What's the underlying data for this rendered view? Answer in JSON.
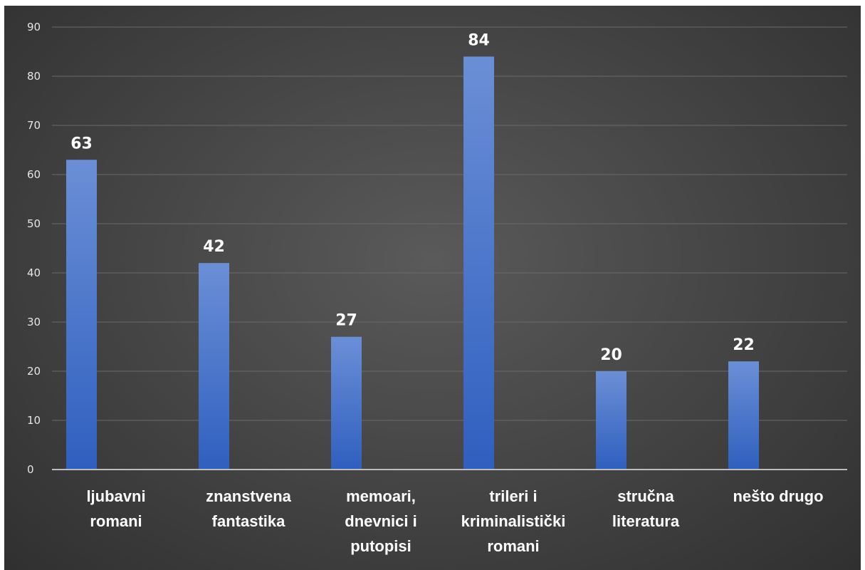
{
  "chart_data": {
    "type": "bar",
    "title": "",
    "xlabel": "",
    "ylabel": "",
    "categories": [
      [
        "ljubavni",
        "romani"
      ],
      [
        "znanstvena",
        "fantastika"
      ],
      [
        "memoari,",
        "dnevnici i",
        "putopisi"
      ],
      [
        "trileri i",
        "kriminalistički",
        "romani"
      ],
      [
        "stručna",
        "literatura"
      ],
      [
        "nešto drugo"
      ]
    ],
    "values": [
      63,
      42,
      27,
      84,
      20,
      22
    ],
    "ylim": [
      0,
      90
    ],
    "yticks": [
      0,
      10,
      20,
      30,
      40,
      50,
      60,
      70,
      80,
      90
    ],
    "grid": true,
    "legend": "none",
    "data_labels": true,
    "colors": {
      "bar_top": "#6b8fd6",
      "bar_bottom": "#2f5fbf",
      "background": "#474747",
      "text": "#ffffff"
    }
  }
}
